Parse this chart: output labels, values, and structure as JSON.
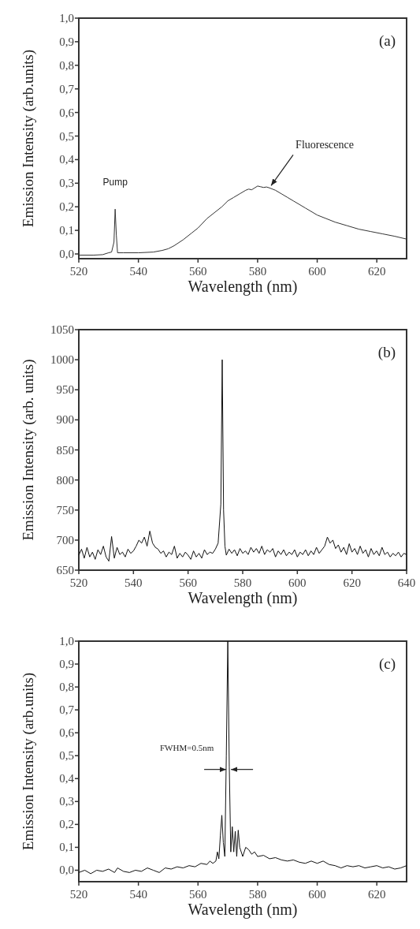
{
  "chart_data": [
    {
      "type": "line",
      "xlabel": "Wavelength (nm)",
      "ylabel": "Emission Intensity (arb.units)",
      "xlim": [
        520,
        630
      ],
      "ylim": [
        -0.02,
        1.0
      ],
      "xticks": [
        520,
        540,
        560,
        580,
        600,
        620
      ],
      "yticks": [
        {
          "value": 0,
          "label": "0,0"
        },
        {
          "value": 0.1,
          "label": "0,1"
        },
        {
          "value": 0.2,
          "label": "0,2"
        },
        {
          "value": 0.3,
          "label": "0,3"
        },
        {
          "value": 0.4,
          "label": "0,4"
        },
        {
          "value": 0.5,
          "label": "0,5"
        },
        {
          "value": 0.6,
          "label": "0,6"
        },
        {
          "value": 0.7,
          "label": "0,7"
        },
        {
          "value": 0.8,
          "label": "0,8"
        },
        {
          "value": 0.9,
          "label": "0,9"
        },
        {
          "value": 1.0,
          "label": "1,0"
        }
      ],
      "grid": false,
      "annotations": [
        "(a)",
        {
          "text": "Pump",
          "x": 532.2,
          "y": 0.19
        },
        {
          "text": "Fluorescence",
          "x": 584,
          "y": 0.28
        }
      ],
      "series": [
        {
          "color": "#333333",
          "x": [
            520,
            525,
            528,
            530,
            531,
            531.8,
            532.2,
            532.6,
            533,
            535,
            540,
            545,
            548,
            550,
            552,
            555,
            558,
            560,
            563,
            566,
            568,
            570,
            572,
            574,
            576,
            577,
            578,
            579,
            580,
            581,
            582,
            583,
            584,
            586,
            588,
            590,
            592,
            594,
            596,
            598,
            600,
            603,
            606,
            610,
            614,
            618,
            622,
            626,
            630
          ],
          "values": [
            -0.005,
            -0.005,
            -0.003,
            0.005,
            0.008,
            0.05,
            0.19,
            0.08,
            0.005,
            0.005,
            0.005,
            0.008,
            0.015,
            0.022,
            0.035,
            0.06,
            0.09,
            0.11,
            0.15,
            0.18,
            0.2,
            0.225,
            0.24,
            0.255,
            0.27,
            0.275,
            0.272,
            0.28,
            0.288,
            0.285,
            0.282,
            0.284,
            0.28,
            0.27,
            0.255,
            0.24,
            0.225,
            0.21,
            0.195,
            0.18,
            0.165,
            0.15,
            0.135,
            0.12,
            0.105,
            0.095,
            0.085,
            0.075,
            0.063
          ]
        }
      ]
    },
    {
      "type": "line",
      "xlabel": "Wavelength (nm)",
      "ylabel": "Emission Intensity (arb. units)",
      "xlim": [
        520,
        640
      ],
      "ylim": [
        650,
        1050
      ],
      "xticks": [
        520,
        540,
        560,
        580,
        600,
        620,
        640
      ],
      "yticks": [
        650,
        700,
        750,
        800,
        850,
        900,
        950,
        1000,
        1050
      ],
      "grid": false,
      "annotations": [
        "(b)"
      ],
      "series": [
        {
          "color": "#111111",
          "x": [
            520,
            521,
            522,
            523,
            524,
            525,
            526,
            527,
            528,
            529,
            530,
            531,
            532,
            533,
            534,
            535,
            536,
            537,
            538,
            539,
            540,
            541,
            542,
            543,
            544,
            545,
            546,
            547,
            548,
            549,
            550,
            551,
            552,
            553,
            554,
            555,
            556,
            557,
            558,
            559,
            560,
            561,
            562,
            563,
            564,
            565,
            566,
            567,
            568,
            569,
            570,
            571,
            572,
            572.5,
            573,
            573.5,
            574,
            575,
            576,
            577,
            578,
            579,
            580,
            581,
            582,
            583,
            584,
            585,
            586,
            587,
            588,
            589,
            590,
            591,
            592,
            593,
            594,
            595,
            596,
            597,
            598,
            599,
            600,
            601,
            602,
            603,
            604,
            605,
            606,
            607,
            608,
            609,
            610,
            611,
            612,
            613,
            614,
            615,
            616,
            617,
            618,
            619,
            620,
            621,
            622,
            623,
            624,
            625,
            626,
            627,
            628,
            629,
            630,
            631,
            632,
            633,
            634,
            635,
            636,
            637,
            638,
            639,
            640
          ],
          "values": [
            675,
            685,
            670,
            688,
            672,
            680,
            668,
            684,
            676,
            690,
            672,
            665,
            706,
            670,
            688,
            676,
            680,
            672,
            685,
            678,
            682,
            690,
            700,
            695,
            705,
            690,
            715,
            695,
            688,
            685,
            678,
            682,
            672,
            680,
            676,
            690,
            670,
            678,
            672,
            680,
            675,
            668,
            682,
            672,
            678,
            670,
            684,
            676,
            680,
            678,
            685,
            695,
            760,
            1000,
            750,
            690,
            675,
            685,
            678,
            684,
            674,
            686,
            678,
            682,
            676,
            688,
            680,
            686,
            678,
            690,
            676,
            684,
            680,
            686,
            672,
            682,
            676,
            684,
            674,
            680,
            676,
            684,
            672,
            680,
            676,
            684,
            674,
            682,
            676,
            688,
            678,
            684,
            690,
            705,
            695,
            700,
            686,
            692,
            680,
            688,
            676,
            694,
            680,
            686,
            676,
            690,
            678,
            684,
            672,
            686,
            676,
            682,
            674,
            688,
            676,
            680,
            672,
            678,
            674,
            680,
            672,
            678,
            676
          ]
        }
      ]
    },
    {
      "type": "line",
      "xlabel": "Wavelength (nm)",
      "ylabel": "Emission Intensity (arb.units)",
      "xlim": [
        520,
        630
      ],
      "ylim": [
        -0.05,
        1.0
      ],
      "xticks": [
        520,
        540,
        560,
        580,
        600,
        620
      ],
      "yticks": [
        {
          "value": 0,
          "label": "0,0"
        },
        {
          "value": 0.1,
          "label": "0,1"
        },
        {
          "value": 0.2,
          "label": "0,2"
        },
        {
          "value": 0.3,
          "label": "0,3"
        },
        {
          "value": 0.4,
          "label": "0,4"
        },
        {
          "value": 0.5,
          "label": "0,5"
        },
        {
          "value": 0.6,
          "label": "0,6"
        },
        {
          "value": 0.7,
          "label": "0,7"
        },
        {
          "value": 0.8,
          "label": "0,8"
        },
        {
          "value": 0.9,
          "label": "0,9"
        },
        {
          "value": 1.0,
          "label": "1,0"
        }
      ],
      "grid": false,
      "annotations": [
        "(c)",
        {
          "text": "FWHM=0.5nm",
          "x": 570,
          "y": 0.44
        }
      ],
      "series": [
        {
          "color": "#111111",
          "x": [
            520,
            522,
            524,
            526,
            528,
            530,
            532,
            533,
            535,
            537,
            539,
            541,
            543,
            545,
            547,
            549,
            551,
            553,
            555,
            557,
            559,
            561,
            563,
            564,
            565,
            566,
            566.5,
            567,
            567.5,
            568,
            568.5,
            569,
            569.5,
            570,
            570.5,
            571,
            571.5,
            572,
            572.5,
            573,
            573.5,
            574,
            575,
            576,
            577,
            578,
            579,
            580,
            582,
            584,
            586,
            588,
            590,
            592,
            594,
            596,
            598,
            600,
            602,
            604,
            606,
            608,
            610,
            612,
            614,
            616,
            618,
            620,
            622,
            624,
            626,
            628,
            630
          ],
          "values": [
            -0.01,
            0.0,
            -0.015,
            0.0,
            -0.005,
            0.005,
            -0.01,
            0.01,
            -0.005,
            -0.01,
            0.0,
            -0.005,
            0.01,
            0.0,
            -0.01,
            0.01,
            0.005,
            0.015,
            0.01,
            0.02,
            0.015,
            0.03,
            0.025,
            0.04,
            0.03,
            0.04,
            0.08,
            0.05,
            0.15,
            0.24,
            0.12,
            0.06,
            0.5,
            1.0,
            0.45,
            0.08,
            0.19,
            0.08,
            0.17,
            0.06,
            0.175,
            0.1,
            0.06,
            0.1,
            0.09,
            0.07,
            0.08,
            0.06,
            0.065,
            0.05,
            0.055,
            0.045,
            0.04,
            0.045,
            0.035,
            0.03,
            0.04,
            0.03,
            0.04,
            0.025,
            0.02,
            0.01,
            0.02,
            0.015,
            0.02,
            0.01,
            0.015,
            0.02,
            0.01,
            0.015,
            0.005,
            0.01,
            0.02
          ]
        }
      ]
    }
  ]
}
